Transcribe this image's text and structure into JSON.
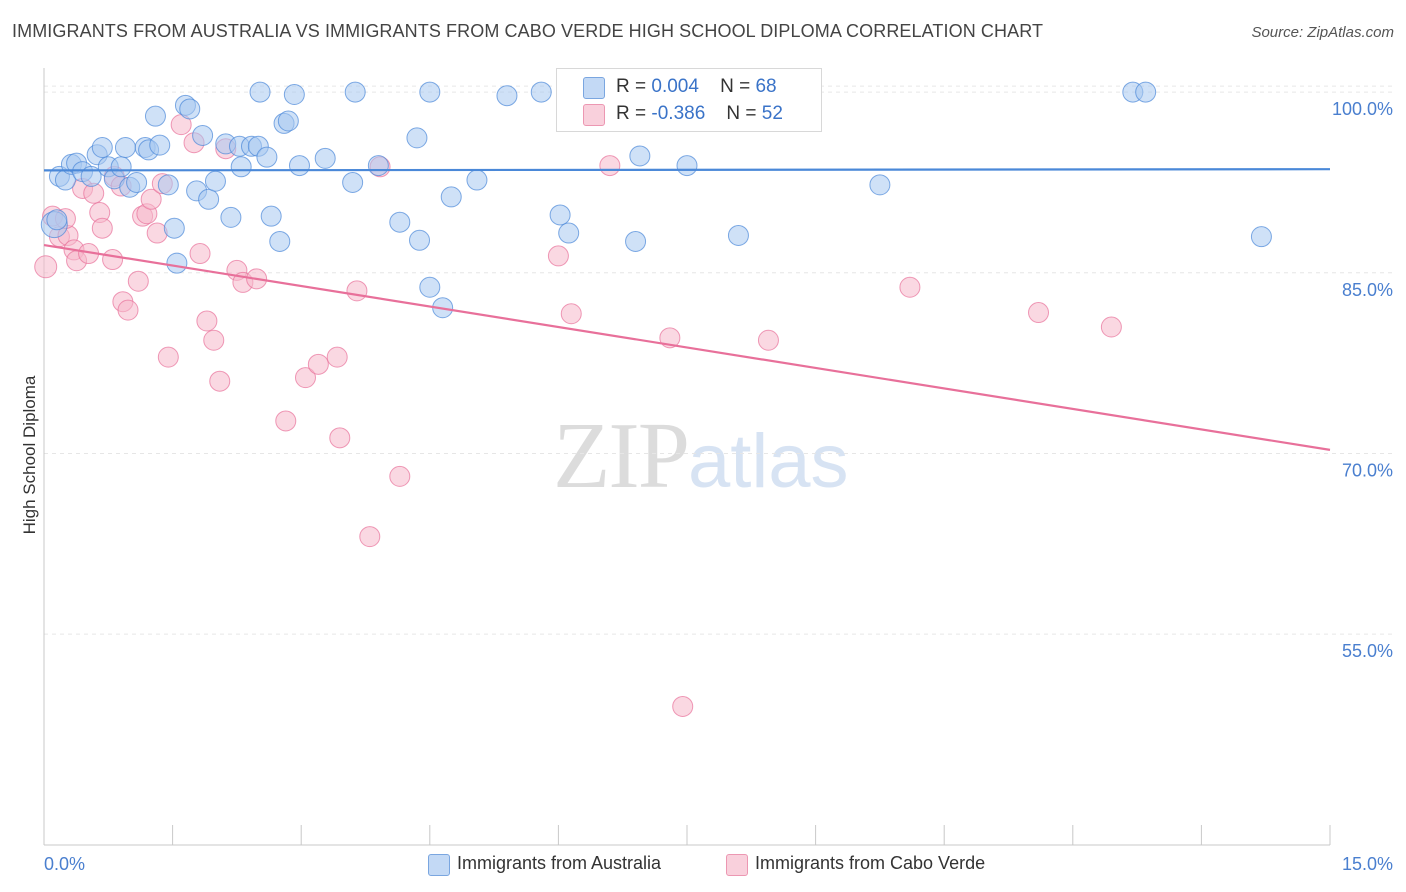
{
  "header": {
    "title": "IMMIGRANTS FROM AUSTRALIA VS IMMIGRANTS FROM CABO VERDE HIGH SCHOOL DIPLOMA CORRELATION CHART",
    "source": "Source: ZipAtlas.com"
  },
  "watermark": {
    "zip": "ZIP",
    "atlas": "atlas"
  },
  "stats_legend": {
    "rows": [
      {
        "r_label": "R =",
        "r_value": "0.004",
        "n_label": "N =",
        "n_value": "68",
        "color": "#a8c8f0"
      },
      {
        "r_label": "R =",
        "r_value": "-0.386",
        "n_label": "N =",
        "n_value": "52",
        "color": "#f5b8ca"
      }
    ]
  },
  "legend": {
    "items": [
      {
        "label": "Immigrants from Australia",
        "color": "#a8c8f0"
      },
      {
        "label": "Immigrants from Cabo Verde",
        "color": "#f5b8ca"
      }
    ]
  },
  "chart_data": {
    "type": "scatter",
    "title": "IMMIGRANTS FROM AUSTRALIA VS IMMIGRANTS FROM CABO VERDE HIGH SCHOOL DIPLOMA CORRELATION CHART",
    "xlabel": "",
    "ylabel": "High School Diploma",
    "xlim": [
      0,
      15
    ],
    "ylim": [
      37.5,
      102
    ],
    "x_tick_labels": [
      "0.0%",
      "15.0%"
    ],
    "y_ticks": [
      55,
      70,
      85,
      100
    ],
    "y_tick_labels": [
      "55.0%",
      "70.0%",
      "85.0%",
      "100.0%"
    ],
    "grid": true,
    "legend_position": "bottom",
    "series": [
      {
        "name": "Immigrants from Australia",
        "color": "#4a88d8",
        "fill": "#a8c8f0",
        "r": "0.004",
        "n": "68",
        "trend": {
          "x": [
            0,
            15
          ],
          "y": [
            93.5,
            93.6
          ]
        },
        "points": [
          [
            0.12,
            89.0,
            13
          ],
          [
            0.18,
            93.0,
            10
          ],
          [
            0.25,
            92.7,
            10
          ],
          [
            0.32,
            94.0,
            10
          ],
          [
            0.38,
            94.1,
            10
          ],
          [
            0.45,
            93.4,
            10
          ],
          [
            0.55,
            93.0,
            10
          ],
          [
            0.62,
            94.8,
            10
          ],
          [
            0.68,
            95.4,
            10
          ],
          [
            0.75,
            93.8,
            10
          ],
          [
            0.82,
            92.8,
            10
          ],
          [
            0.9,
            93.8,
            10
          ],
          [
            0.95,
            95.4,
            10
          ],
          [
            1.0,
            92.1,
            10
          ],
          [
            1.08,
            92.5,
            10
          ],
          [
            1.18,
            95.4,
            10
          ],
          [
            1.22,
            95.2,
            10
          ],
          [
            1.3,
            98.0,
            10
          ],
          [
            1.35,
            95.6,
            10
          ],
          [
            1.45,
            92.3,
            10
          ],
          [
            1.52,
            88.7,
            10
          ],
          [
            1.55,
            85.8,
            10
          ],
          [
            1.65,
            98.9,
            10
          ],
          [
            1.7,
            98.6,
            10
          ],
          [
            1.78,
            91.8,
            10
          ],
          [
            1.85,
            96.4,
            10
          ],
          [
            1.92,
            91.1,
            10
          ],
          [
            2.0,
            92.6,
            10
          ],
          [
            2.12,
            95.7,
            10
          ],
          [
            2.18,
            89.6,
            10
          ],
          [
            2.28,
            95.5,
            10
          ],
          [
            2.3,
            93.8,
            10
          ],
          [
            2.42,
            95.5,
            10
          ],
          [
            2.5,
            95.5,
            10
          ],
          [
            2.52,
            100.0,
            10
          ],
          [
            2.6,
            94.6,
            10
          ],
          [
            2.65,
            89.7,
            10
          ],
          [
            2.8,
            97.4,
            10
          ],
          [
            2.75,
            87.6,
            10
          ],
          [
            2.85,
            97.6,
            10
          ],
          [
            2.92,
            99.8,
            10
          ],
          [
            2.98,
            93.9,
            10
          ],
          [
            3.28,
            94.5,
            10
          ],
          [
            3.6,
            92.5,
            10
          ],
          [
            3.63,
            100.0,
            10
          ],
          [
            3.9,
            93.9,
            10
          ],
          [
            4.15,
            89.2,
            10
          ],
          [
            4.35,
            96.2,
            10
          ],
          [
            4.38,
            87.7,
            10
          ],
          [
            4.5,
            100.0,
            10
          ],
          [
            4.5,
            83.8,
            10
          ],
          [
            4.65,
            82.1,
            10
          ],
          [
            4.75,
            91.3,
            10
          ],
          [
            5.05,
            92.7,
            10
          ],
          [
            5.4,
            99.7,
            10
          ],
          [
            5.8,
            100.0,
            10
          ],
          [
            6.02,
            89.8,
            10
          ],
          [
            6.12,
            88.3,
            10
          ],
          [
            6.7,
            98.0,
            10
          ],
          [
            6.9,
            87.6,
            10
          ],
          [
            6.95,
            94.7,
            10
          ],
          [
            7.5,
            93.9,
            10
          ],
          [
            8.1,
            88.1,
            10
          ],
          [
            9.75,
            92.3,
            10
          ],
          [
            12.7,
            100.0,
            10
          ],
          [
            12.85,
            100.0,
            10
          ],
          [
            14.2,
            88.0,
            10
          ],
          [
            0.15,
            89.4,
            10
          ]
        ]
      },
      {
        "name": "Immigrants from Cabo Verde",
        "color": "#e8709a",
        "fill": "#f5b8ca",
        "r": "-0.386",
        "n": "52",
        "trend": {
          "x": [
            0,
            15
          ],
          "y": [
            87.3,
            70.3
          ]
        },
        "points": [
          [
            0.02,
            85.5,
            11
          ],
          [
            0.1,
            89.7,
            10
          ],
          [
            0.18,
            88.0,
            10
          ],
          [
            0.28,
            88.1,
            10
          ],
          [
            0.35,
            86.9,
            10
          ],
          [
            0.38,
            86.0,
            10
          ],
          [
            0.45,
            92.0,
            10
          ],
          [
            0.52,
            86.6,
            10
          ],
          [
            0.58,
            91.6,
            10
          ],
          [
            0.65,
            90.0,
            10
          ],
          [
            0.68,
            88.7,
            10
          ],
          [
            0.8,
            86.1,
            10
          ],
          [
            0.82,
            93.0,
            10
          ],
          [
            0.9,
            92.2,
            10
          ],
          [
            0.92,
            82.6,
            10
          ],
          [
            0.98,
            81.9,
            10
          ],
          [
            1.1,
            84.3,
            10
          ],
          [
            1.15,
            89.7,
            10
          ],
          [
            1.2,
            89.9,
            10
          ],
          [
            1.25,
            91.1,
            10
          ],
          [
            1.32,
            88.3,
            10
          ],
          [
            1.38,
            92.4,
            10
          ],
          [
            1.45,
            78.0,
            10
          ],
          [
            1.6,
            97.3,
            10
          ],
          [
            1.75,
            95.8,
            10
          ],
          [
            1.82,
            86.6,
            10
          ],
          [
            1.9,
            81.0,
            10
          ],
          [
            1.98,
            79.4,
            10
          ],
          [
            2.05,
            76.0,
            10
          ],
          [
            2.12,
            95.3,
            10
          ],
          [
            2.25,
            85.2,
            10
          ],
          [
            2.32,
            84.2,
            10
          ],
          [
            2.48,
            84.5,
            10
          ],
          [
            2.82,
            72.7,
            10
          ],
          [
            3.05,
            76.3,
            10
          ],
          [
            3.2,
            77.4,
            10
          ],
          [
            3.42,
            78.0,
            10
          ],
          [
            3.45,
            71.3,
            10
          ],
          [
            3.65,
            83.5,
            10
          ],
          [
            3.8,
            63.1,
            10
          ],
          [
            3.92,
            93.8,
            10
          ],
          [
            4.15,
            68.1,
            10
          ],
          [
            6.0,
            86.4,
            10
          ],
          [
            6.15,
            81.6,
            10
          ],
          [
            6.6,
            93.9,
            10
          ],
          [
            7.3,
            79.6,
            10
          ],
          [
            7.45,
            49.0,
            10
          ],
          [
            8.45,
            79.4,
            10
          ],
          [
            10.1,
            83.8,
            10
          ],
          [
            11.6,
            81.7,
            10
          ],
          [
            12.45,
            80.5,
            10
          ],
          [
            0.25,
            89.5,
            10
          ]
        ]
      }
    ]
  }
}
